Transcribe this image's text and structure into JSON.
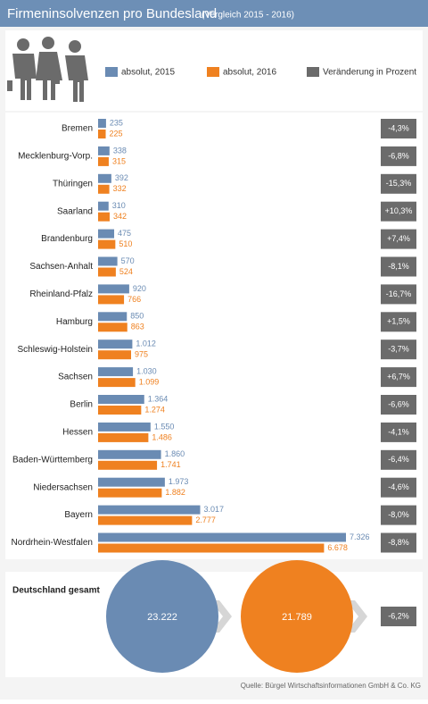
{
  "chart_data": {
    "type": "bar",
    "title": "Firmeninsolvenzen pro Bundesland",
    "subtitle": "(Vergleich 2015 - 2016)",
    "categories": [
      "Bremen",
      "Mecklenburg-Vorp.",
      "Thüringen",
      "Saarland",
      "Brandenburg",
      "Sachsen-Anhalt",
      "Rheinland-Pfalz",
      "Hamburg",
      "Schleswig-Holstein",
      "Sachsen",
      "Berlin",
      "Hessen",
      "Baden-Württemberg",
      "Niedersachsen",
      "Bayern",
      "Nordrhein-Westfalen"
    ],
    "series": [
      {
        "name": "absolut, 2015",
        "color": "#6a8bb3",
        "values": [
          235,
          338,
          392,
          310,
          475,
          570,
          920,
          850,
          1012,
          1030,
          1364,
          1550,
          1860,
          1973,
          3017,
          7326
        ],
        "value_labels": [
          "235",
          "338",
          "392",
          "310",
          "475",
          "570",
          "920",
          "850",
          "1.012",
          "1.030",
          "1.364",
          "1.550",
          "1.860",
          "1.973",
          "3.017",
          "7.326"
        ]
      },
      {
        "name": "absolut, 2016",
        "color": "#ef8120",
        "values": [
          225,
          315,
          332,
          342,
          510,
          524,
          766,
          863,
          975,
          1099,
          1274,
          1486,
          1741,
          1882,
          2777,
          6678
        ],
        "value_labels": [
          "225",
          "315",
          "332",
          "342",
          "510",
          "524",
          "766",
          "863",
          "975",
          "1.099",
          "1.274",
          "1.486",
          "1.741",
          "1.882",
          "2.777",
          "6.678"
        ]
      }
    ],
    "change": {
      "name": "Veränderung in Prozent",
      "color": "#6b6b6b",
      "values": [
        -4.3,
        -6.8,
        -15.3,
        10.3,
        7.4,
        -8.1,
        -16.7,
        1.5,
        -3.7,
        6.7,
        -6.6,
        -4.1,
        -6.4,
        -4.6,
        -8.0,
        -8.8
      ],
      "value_labels": [
        "-4,3%",
        "-6,8%",
        "-15,3%",
        "+10,3%",
        "+7,4%",
        "-8,1%",
        "-16,7%",
        "+1,5%",
        "-3,7%",
        "+6,7%",
        "-6,6%",
        "-4,1%",
        "-6,4%",
        "-4,6%",
        "-8,0%",
        "-8,8%"
      ]
    },
    "total": {
      "label": "Deutschland gesamt",
      "values": [
        23222,
        21789
      ],
      "value_labels": [
        "23.222",
        "21.789"
      ],
      "change": -6.2,
      "change_label": "-6,2%"
    },
    "source": "Quelle: Bürgel Wirtschaftsinformationen GmbH & Co. KG"
  }
}
